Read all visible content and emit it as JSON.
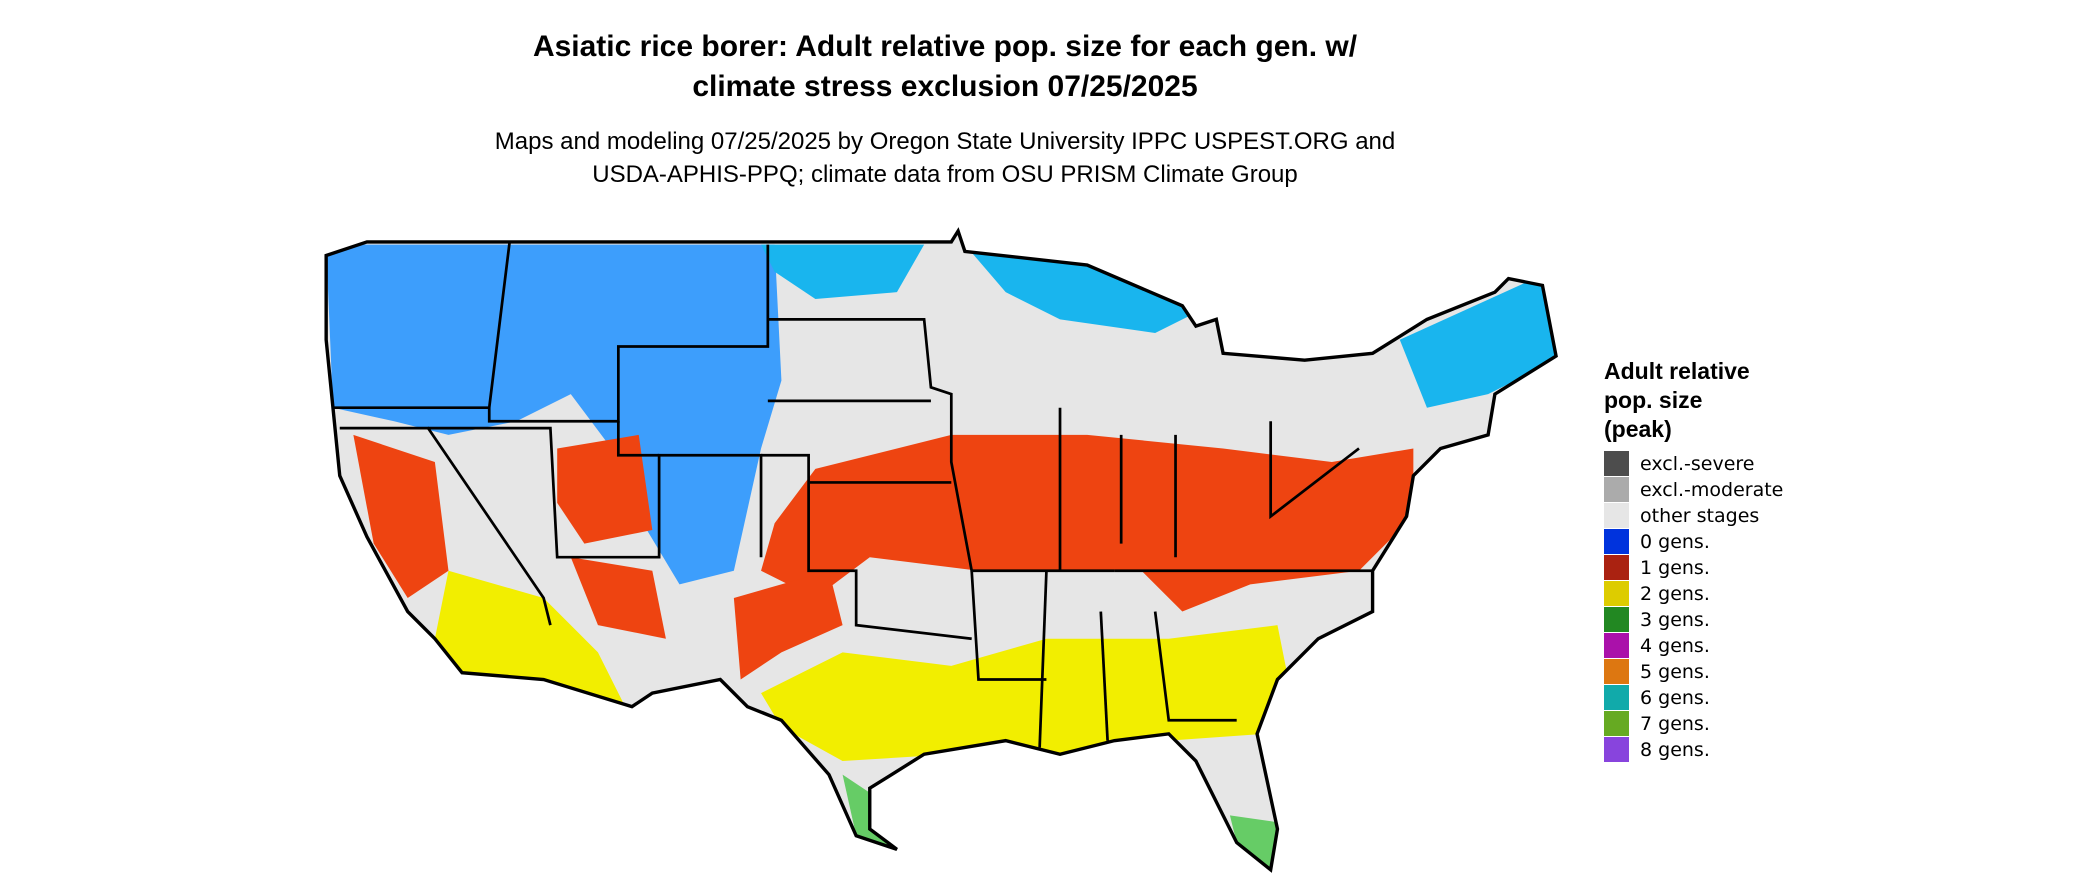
{
  "header": {
    "title": [
      "Asiatic rice borer: Adult relative pop. size for each gen. w/",
      "climate stress exclusion 07/25/2025"
    ],
    "subtitle": [
      "Maps and modeling 07/25/2025 by Oregon State University IPPC USPEST.ORG and",
      "USDA-APHIS-PPQ; climate data from OSU PRISM Climate Group"
    ]
  },
  "legend": {
    "title": [
      "Adult relative",
      "pop. size",
      "(peak)"
    ],
    "items": [
      {
        "label": "excl.-severe",
        "color": "#4d4d4d"
      },
      {
        "label": "excl.-moderate",
        "color": "#ababab"
      },
      {
        "label": "other stages",
        "color": "#e6e6e6"
      },
      {
        "label": "0 gens.",
        "color": "#0033dd"
      },
      {
        "label": "1 gens.",
        "color": "#aa2211"
      },
      {
        "label": "2 gens.",
        "color": "#ddcc00"
      },
      {
        "label": "3 gens.",
        "color": "#228822"
      },
      {
        "label": "4 gens.",
        "color": "#aa11aa"
      },
      {
        "label": "5 gens.",
        "color": "#dd7711"
      },
      {
        "label": "6 gens.",
        "color": "#11aaaa"
      },
      {
        "label": "7 gens.",
        "color": "#66aa22"
      },
      {
        "label": "8 gens.",
        "color": "#8844dd"
      }
    ]
  }
}
